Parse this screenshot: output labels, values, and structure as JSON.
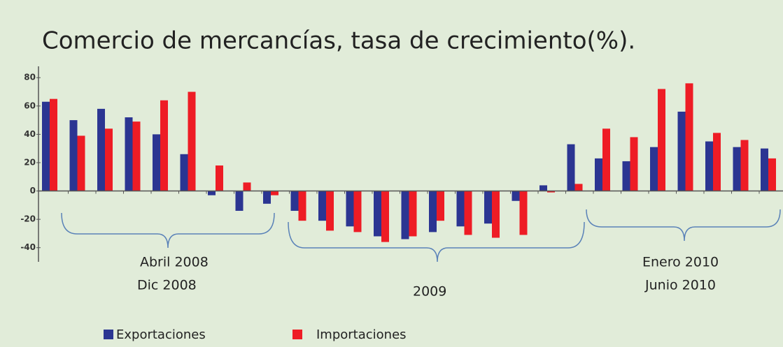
{
  "chart_data": {
    "type": "bar",
    "title": "Comercio de mercancías, tasa de crecimiento(%).",
    "categories": [
      null,
      null,
      null,
      null,
      null,
      null,
      null,
      null,
      null,
      null,
      null,
      null,
      null,
      null,
      null,
      null,
      null,
      null,
      null,
      null,
      null,
      null,
      null,
      null,
      null,
      null,
      null
    ],
    "series": [
      {
        "name": "Exportaciones",
        "color": "#2b3592",
        "values": [
          63,
          50,
          58,
          52,
          40,
          26,
          -3,
          -14,
          -9,
          -14,
          -21,
          -25,
          -32,
          -34,
          -29,
          -25,
          -23,
          -7,
          4,
          33,
          23,
          21,
          31,
          56,
          35,
          31,
          30
        ]
      },
      {
        "name": "Importaciones",
        "color": "#ee1c25",
        "values": [
          65,
          39,
          44,
          49,
          64,
          70,
          18,
          6,
          -3,
          -21,
          -28,
          -29,
          -36,
          -32,
          -21,
          -31,
          -33,
          -31,
          -1,
          5,
          44,
          38,
          72,
          76,
          41,
          36,
          23
        ]
      }
    ],
    "annotations": [
      "Abril 2008",
      "Dic 2008",
      "2009",
      "Enero 2010",
      "Junio 2010"
    ],
    "ylim": [
      -50,
      88
    ],
    "yticks": [
      -40,
      -20,
      0,
      20,
      40,
      60,
      80
    ],
    "grid": false,
    "legend": "bottom-left"
  }
}
